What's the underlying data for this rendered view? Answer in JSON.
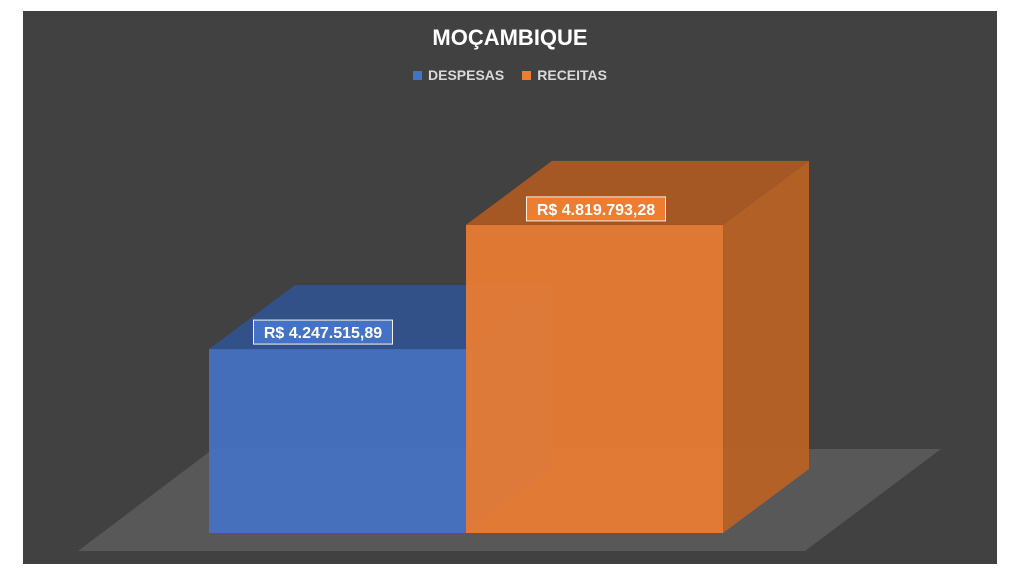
{
  "chart_data": {
    "type": "bar",
    "title": "MOÇAMBIQUE",
    "categories": [
      "DESPESAS",
      "RECEITAS"
    ],
    "values": [
      4247515.89,
      4819793.28
    ],
    "data_labels": [
      "R$ 4.247.515,89",
      "R$ 4.819.793,28"
    ],
    "legend": [
      "DESPESAS",
      "RECEITAS"
    ],
    "legend_position": "top",
    "colors": [
      "#4472C4",
      "#ED7D31"
    ],
    "ylim": [
      3400000,
      5000000
    ],
    "grid": false,
    "style": "3d-column"
  },
  "theme": {
    "background": "#ffffff",
    "plot_background": "#414141",
    "floor": "#585858",
    "title_color": "#ffffff",
    "legend_text": "#d9d9d9"
  }
}
